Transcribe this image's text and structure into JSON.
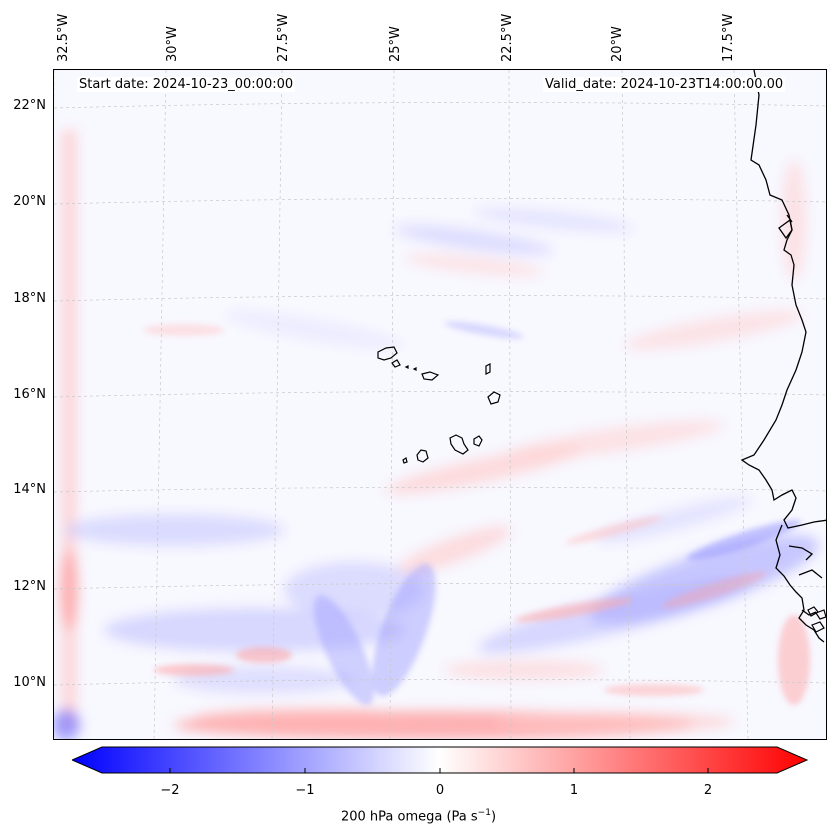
{
  "map": {
    "title_left": "Start date: 2024-10-23_00:00:00",
    "title_right": "Valid_date: 2024-10-23T14:00:00.00",
    "lon_labels": [
      "32.5°W",
      "30°W",
      "27.5°W",
      "25°W",
      "22.5°W",
      "20°W",
      "17.5°W"
    ],
    "lat_labels": [
      "22°N",
      "20°N",
      "18°N",
      "16°N",
      "14°N",
      "12°N",
      "10°N"
    ],
    "land_color": "#000000",
    "field_name": "200 hPa omega"
  },
  "colorbar": {
    "ticks": [
      "−2",
      "−1",
      "0",
      "1",
      "2"
    ],
    "label_main": "200 hPa omega (Pa s",
    "label_sup": "−1",
    "label_close": ")",
    "cmap_low": "#0000ff",
    "cmap_mid": "#ffffff",
    "cmap_high": "#ff0000",
    "range": [
      -2.7,
      2.7
    ]
  }
}
